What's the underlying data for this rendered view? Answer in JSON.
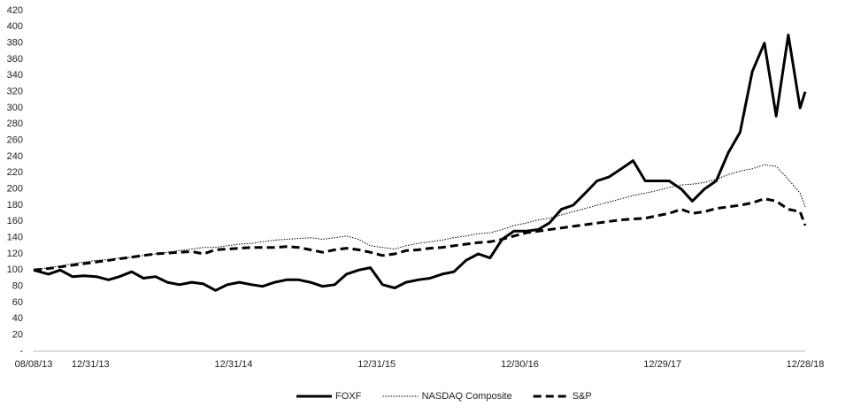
{
  "chart_data": {
    "type": "line",
    "x": [
      "08/08/13",
      "09/15/13",
      "10/15/13",
      "11/15/13",
      "12/15/13",
      "01/15/14",
      "02/15/14",
      "03/15/14",
      "04/15/14",
      "05/15/14",
      "06/15/14",
      "07/15/14",
      "08/15/14",
      "09/15/14",
      "10/15/14",
      "11/15/14",
      "12/15/14",
      "01/15/15",
      "02/15/15",
      "03/15/15",
      "04/15/15",
      "05/15/15",
      "06/15/15",
      "07/15/15",
      "08/15/15",
      "09/15/15",
      "10/15/15",
      "11/15/15",
      "12/15/15",
      "01/15/16",
      "02/15/16",
      "03/15/16",
      "04/15/16",
      "05/15/16",
      "06/15/16",
      "07/15/16",
      "08/15/16",
      "09/15/16",
      "10/15/16",
      "11/15/16",
      "12/15/16",
      "01/15/17",
      "02/15/17",
      "03/15/17",
      "04/15/17",
      "05/15/17",
      "06/15/17",
      "07/15/17",
      "08/15/17",
      "09/15/17",
      "10/15/17",
      "11/15/17",
      "12/15/17",
      "01/15/18",
      "02/15/18",
      "03/15/18",
      "04/15/18",
      "05/15/18",
      "06/15/18",
      "07/15/18",
      "08/15/18",
      "09/15/18",
      "10/15/18",
      "11/15/18",
      "12/15/18",
      "12/28/18"
    ],
    "series": [
      {
        "name": "FOXF",
        "color": "#000000",
        "style": "solid",
        "values": [
          100,
          95,
          100,
          92,
          93,
          92,
          88,
          92,
          98,
          90,
          92,
          85,
          82,
          85,
          83,
          75,
          82,
          85,
          82,
          80,
          85,
          88,
          88,
          85,
          80,
          82,
          95,
          100,
          103,
          82,
          78,
          85,
          88,
          90,
          95,
          98,
          112,
          120,
          115,
          138,
          148,
          148,
          150,
          158,
          175,
          180,
          195,
          210,
          215,
          225,
          235,
          210,
          210,
          210,
          200,
          185,
          200,
          210,
          245,
          270,
          345,
          380,
          290,
          390,
          300,
          320
        ]
      },
      {
        "name": "NASDAQ Composite",
        "color": "#000000",
        "style": "dotted",
        "values": [
          100,
          103,
          105,
          108,
          110,
          112,
          113,
          115,
          116,
          118,
          120,
          122,
          124,
          126,
          128,
          128,
          130,
          132,
          133,
          135,
          137,
          138,
          139,
          140,
          138,
          140,
          142,
          138,
          130,
          128,
          126,
          130,
          133,
          135,
          137,
          140,
          142,
          145,
          146,
          150,
          155,
          158,
          162,
          164,
          168,
          172,
          176,
          180,
          184,
          188,
          192,
          195,
          198,
          202,
          205,
          206,
          208,
          212,
          218,
          222,
          225,
          230,
          228,
          212,
          195,
          178
        ]
      },
      {
        "name": "S&P",
        "color": "#000000",
        "style": "dashed",
        "values": [
          100,
          102,
          104,
          106,
          108,
          110,
          112,
          114,
          116,
          118,
          120,
          121,
          122,
          123,
          120,
          125,
          126,
          127,
          128,
          128,
          128,
          129,
          128,
          125,
          122,
          125,
          127,
          125,
          122,
          118,
          120,
          124,
          125,
          127,
          128,
          130,
          132,
          134,
          135,
          138,
          142,
          146,
          148,
          150,
          152,
          154,
          156,
          158,
          160,
          162,
          163,
          164,
          167,
          170,
          175,
          170,
          172,
          176,
          178,
          180,
          183,
          188,
          185,
          175,
          172,
          155
        ]
      }
    ],
    "xlim": [
      "08/08/13",
      "12/28/18"
    ],
    "xticks": [
      "08/08/13",
      "12/31/13",
      "12/31/14",
      "12/31/15",
      "12/30/16",
      "12/29/17",
      "12/28/18"
    ],
    "ylim": [
      0,
      420
    ],
    "yticks": [
      {
        "value": 0,
        "label": "-"
      },
      20,
      40,
      60,
      80,
      100,
      120,
      140,
      160,
      180,
      200,
      220,
      240,
      260,
      280,
      300,
      320,
      340,
      360,
      380,
      400,
      420
    ],
    "legend": "bottom"
  }
}
